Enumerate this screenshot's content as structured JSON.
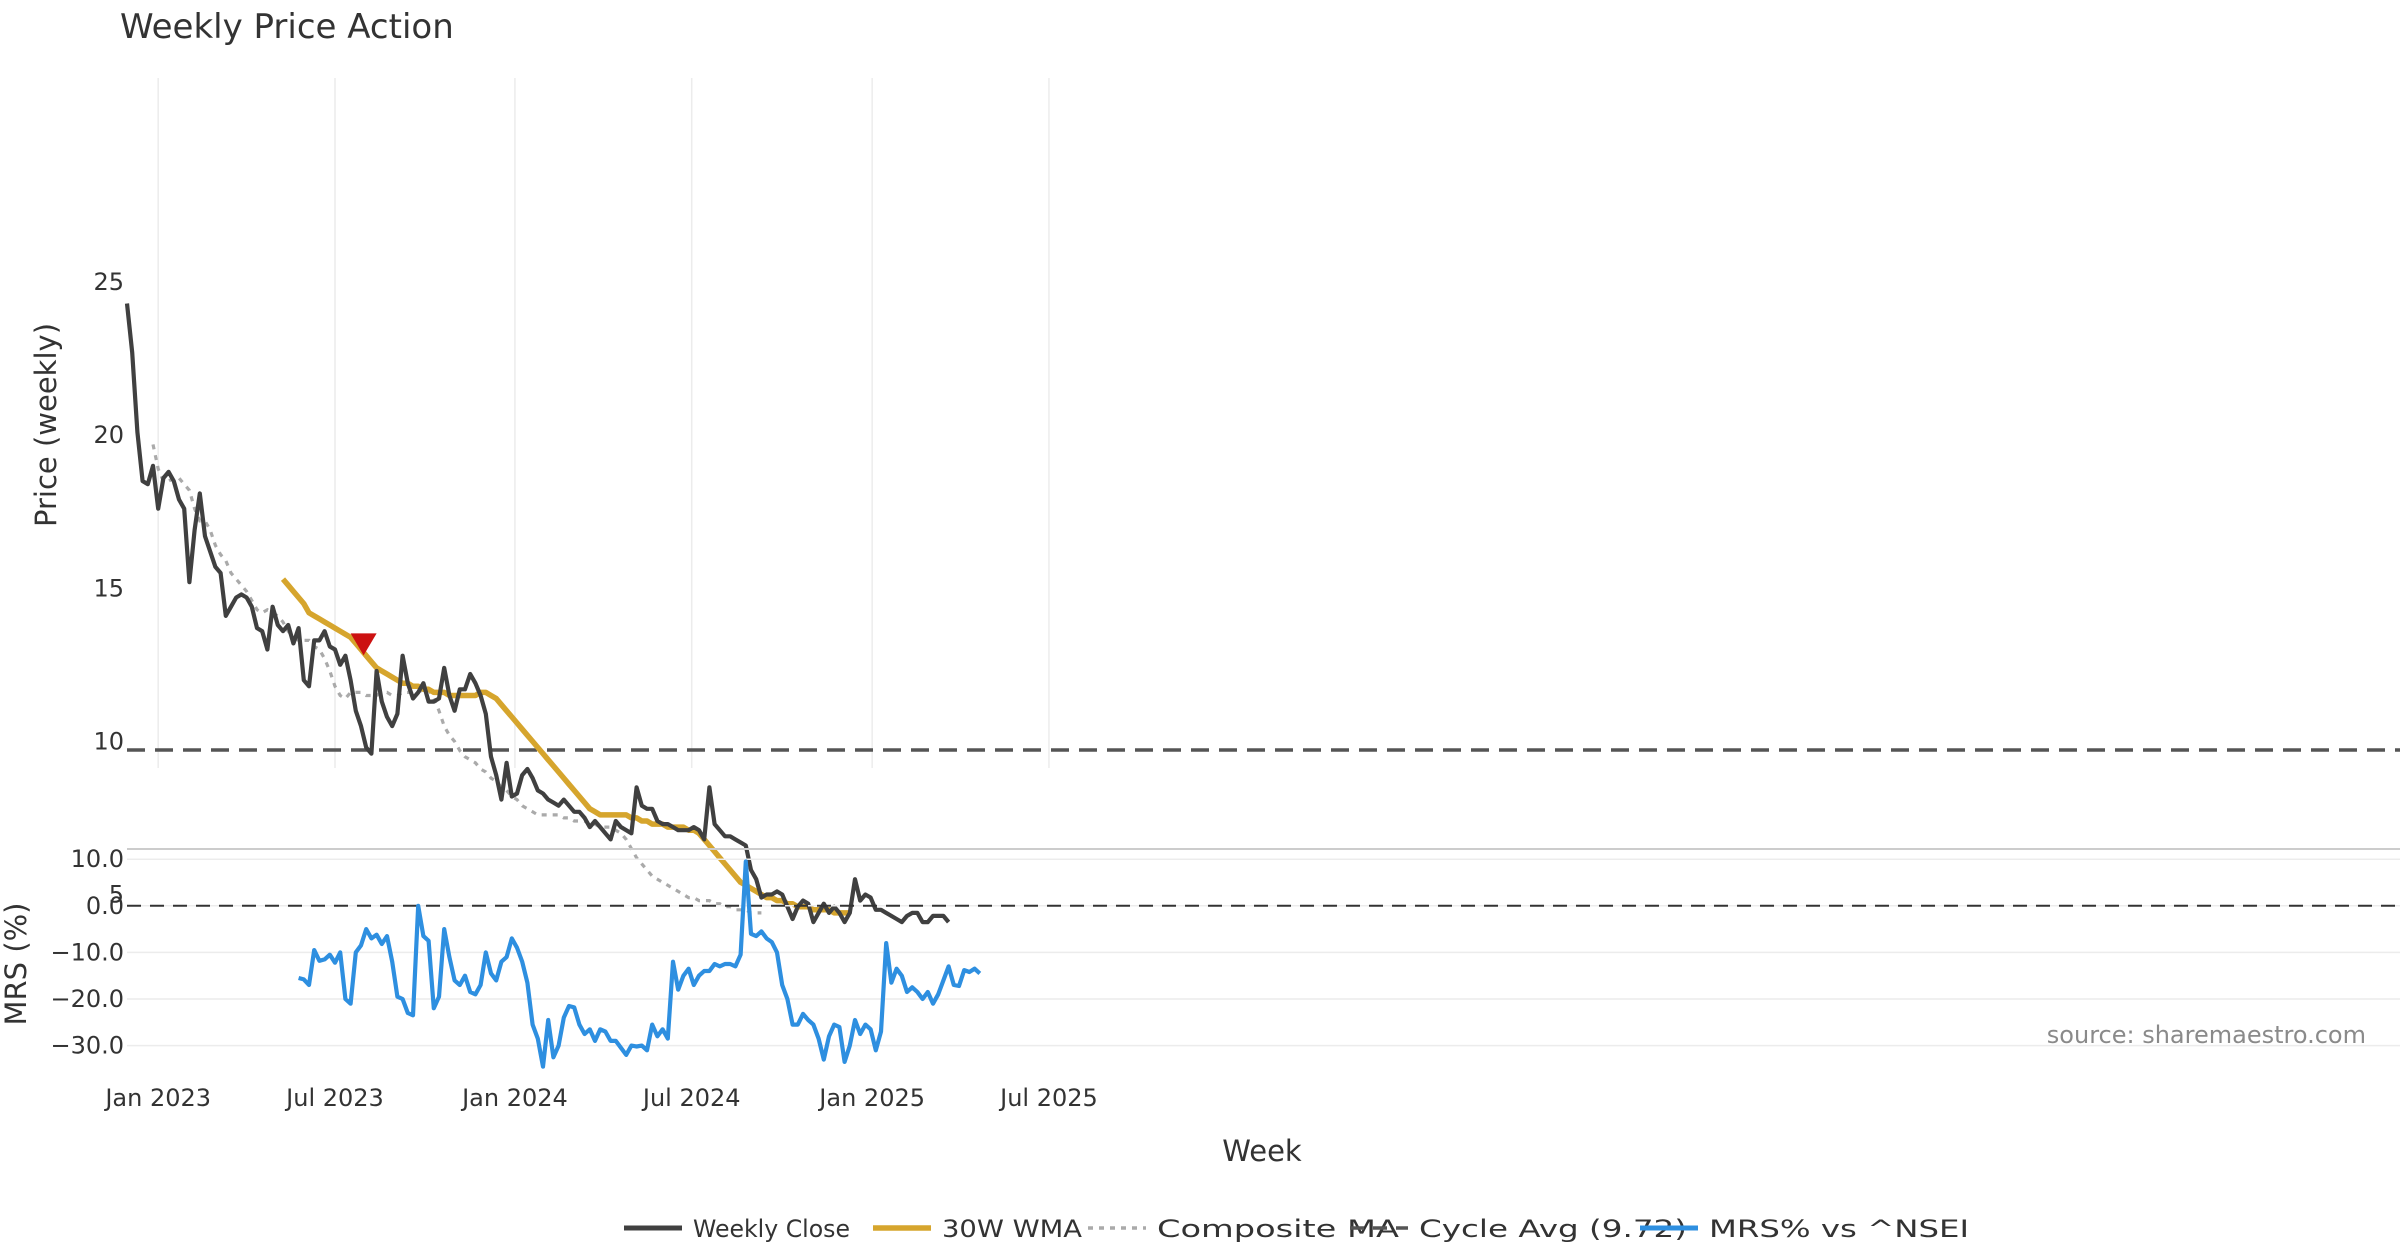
{
  "chart_data": {
    "type": "line",
    "title": "Weekly Price Action",
    "source": "source: sharemaestro.com",
    "xlabel": "Week",
    "x_ticks": [
      "Jan 2023",
      "Jul 2023",
      "Jan 2024",
      "Jul 2024",
      "Jan 2025",
      "Jul 2025"
    ],
    "x_tick_weeks": [
      6,
      40,
      74.6,
      108.6,
      143.3,
      177.3
    ],
    "legend": [
      "Weekly Close",
      "30W WMA",
      "Composite MA",
      "Cycle Avg (9.72)",
      "MRS% vs ^NSEI"
    ],
    "colors": {
      "close": "#404040",
      "wma": "#d6a52d",
      "composite": "#aaaaaa",
      "cycle": "#555555",
      "mrs": "#2e8fe0",
      "marker": "#cc1111"
    },
    "price_panel": {
      "ylabel": "Price (weekly)",
      "ylim": [
        2,
        25.5
      ],
      "y_ticks": [
        5,
        10,
        15,
        20,
        25
      ],
      "cycle_avg": 9.72,
      "sell_marker": {
        "week": 45.5,
        "price": 13.2
      },
      "series": [
        {
          "name": "Weekly Close",
          "start_week": 0,
          "values": [
            24.3,
            22.7,
            20.1,
            18.5,
            18.4,
            19.0,
            17.6,
            18.6,
            18.8,
            18.5,
            17.9,
            17.6,
            15.2,
            16.9,
            18.1,
            16.7,
            16.2,
            15.7,
            15.5,
            14.1,
            14.4,
            14.7,
            14.8,
            14.7,
            14.4,
            13.7,
            13.6,
            13.0,
            14.4,
            13.8,
            13.6,
            13.8,
            13.2,
            13.7,
            12.0,
            11.8,
            13.3,
            13.3,
            13.6,
            13.1,
            13.0,
            12.5,
            12.8,
            12.0,
            11.0,
            10.5,
            9.8,
            9.6,
            12.3,
            11.3,
            10.8,
            10.5,
            10.9,
            12.8,
            11.9,
            11.4,
            11.6,
            11.9,
            11.3,
            11.3,
            11.4,
            12.4,
            11.5,
            11.0,
            11.7,
            11.7,
            12.2,
            11.9,
            11.5,
            10.9,
            9.5,
            8.9,
            8.1,
            9.3,
            8.2,
            8.3,
            8.9,
            9.1,
            8.8,
            8.4,
            8.3,
            8.1,
            8.0,
            7.9,
            8.1,
            7.9,
            7.7,
            7.7,
            7.5,
            7.2,
            7.4,
            7.2,
            7.0,
            6.8,
            7.4,
            7.2,
            7.1,
            7.0,
            8.5,
            7.9,
            7.8,
            7.8,
            7.4,
            7.3,
            7.3,
            7.2,
            7.1,
            7.1,
            7.1,
            7.2,
            7.1,
            6.8,
            8.5,
            7.3,
            7.1,
            6.9,
            6.9,
            6.8,
            6.7,
            6.6,
            5.8,
            5.5,
            4.9,
            5.0,
            5.0,
            5.1,
            5.0,
            4.6,
            4.2,
            4.6,
            4.8,
            4.7,
            4.1,
            4.4,
            4.7,
            4.4,
            4.6,
            4.4,
            4.1,
            4.4,
            5.5,
            4.8,
            5.0,
            4.9,
            4.5,
            4.5,
            4.4,
            4.3,
            4.2,
            4.1,
            4.3,
            4.4,
            4.4,
            4.1,
            4.1,
            4.3,
            4.3,
            4.3,
            4.1
          ]
        },
        {
          "name": "30W WMA",
          "start_week": 30,
          "values": [
            15.3,
            15.1,
            14.9,
            14.7,
            14.5,
            14.2,
            14.1,
            14.0,
            13.9,
            13.8,
            13.7,
            13.6,
            13.5,
            13.4,
            13.2,
            13.0,
            12.8,
            12.6,
            12.4,
            12.3,
            12.2,
            12.1,
            12.0,
            11.9,
            11.9,
            11.8,
            11.8,
            11.7,
            11.7,
            11.6,
            11.6,
            11.6,
            11.5,
            11.5,
            11.5,
            11.5,
            11.5,
            11.5,
            11.6,
            11.6,
            11.5,
            11.4,
            11.2,
            11.0,
            10.8,
            10.6,
            10.4,
            10.2,
            10.0,
            9.8,
            9.6,
            9.4,
            9.2,
            9.0,
            8.8,
            8.6,
            8.4,
            8.2,
            8.0,
            7.8,
            7.7,
            7.6,
            7.6,
            7.6,
            7.6,
            7.6,
            7.6,
            7.5,
            7.5,
            7.4,
            7.4,
            7.3,
            7.3,
            7.3,
            7.2,
            7.2,
            7.2,
            7.2,
            7.1,
            7.1,
            7.0,
            6.8,
            6.6,
            6.4,
            6.2,
            6.0,
            5.8,
            5.6,
            5.4,
            5.3,
            5.2,
            5.1,
            5.0,
            4.9,
            4.9,
            4.8,
            4.8,
            4.7,
            4.7,
            4.6,
            4.6,
            4.6,
            4.5,
            4.5,
            4.5,
            4.5,
            4.4,
            4.4,
            4.4,
            4.4
          ]
        },
        {
          "name": "Composite MA",
          "start_week": 5,
          "values": [
            19.7,
            18.9,
            18.5,
            18.5,
            18.6,
            18.6,
            18.4,
            18.2,
            17.6,
            17.2,
            17.2,
            16.9,
            16.4,
            16.1,
            15.9,
            15.5,
            15.3,
            15.1,
            14.9,
            14.6,
            14.3,
            14.2,
            14.3,
            14.2,
            14.1,
            13.9,
            13.6,
            13.4,
            13.3,
            13.3,
            13.3,
            13.1,
            13.0,
            12.7,
            12.3,
            11.8,
            11.5,
            11.4,
            11.6,
            11.6,
            11.6,
            11.5,
            11.5,
            11.5,
            11.6,
            11.6,
            11.5,
            11.5,
            11.6,
            11.6,
            11.6,
            11.6,
            11.7,
            11.7,
            11.4,
            11.0,
            10.5,
            10.2,
            10.0,
            9.7,
            9.5,
            9.4,
            9.3,
            9.1,
            9.0,
            8.8,
            8.7,
            8.5,
            8.4,
            8.2,
            8.1,
            7.9,
            7.8,
            7.7,
            7.6,
            7.6,
            7.6,
            7.6,
            7.6,
            7.5,
            7.5,
            7.4,
            7.4,
            7.4,
            7.3,
            7.3,
            7.2,
            7.2,
            7.2,
            7.1,
            7.0,
            6.8,
            6.5,
            6.2,
            6.0,
            5.8,
            5.6,
            5.5,
            5.4,
            5.3,
            5.2,
            5.1,
            5.0,
            4.9,
            4.9,
            4.8,
            4.8,
            4.8,
            4.7,
            4.7,
            4.6,
            4.6,
            4.5,
            4.5,
            4.5,
            4.4,
            4.4,
            4.4
          ]
        }
      ]
    },
    "mrs_panel": {
      "ylabel": "MRS (%)",
      "ylim": [
        -36,
        12
      ],
      "y_ticks": [
        10.0,
        0.0,
        -10.0,
        -20.0,
        -30.0
      ],
      "y_tick_labels": [
        "10.0",
        "0.0",
        "−10.0",
        "−20.0",
        "−30.0"
      ],
      "reference": 0,
      "series": [
        {
          "name": "MRS% vs ^NSEI",
          "start_week": 33,
          "values": [
            -15.5,
            -15.8,
            -17.0,
            -9.5,
            -11.8,
            -11.5,
            -10.5,
            -12.2,
            -10.0,
            -20.0,
            -21.0,
            -10.0,
            -8.5,
            -5.0,
            -7.0,
            -6.2,
            -8.2,
            -6.5,
            -12.0,
            -19.5,
            -20.0,
            -23.0,
            -23.5,
            0.0,
            -6.5,
            -7.5,
            -22.0,
            -19.5,
            -5.0,
            -11.0,
            -16.0,
            -17.0,
            -15.0,
            -18.5,
            -19.0,
            -17.0,
            -10.0,
            -14.5,
            -16.0,
            -12.0,
            -11.0,
            -7.0,
            -9.0,
            -12.0,
            -16.5,
            -25.5,
            -28.5,
            -34.5,
            -24.5,
            -32.5,
            -30.0,
            -24.0,
            -21.5,
            -21.8,
            -25.5,
            -27.5,
            -26.5,
            -29.0,
            -26.5,
            -27.0,
            -29.0,
            -29.0,
            -30.5,
            -32.0,
            -30.0,
            -30.2,
            -30.0,
            -31.0,
            -25.5,
            -28.0,
            -26.5,
            -28.5,
            -12.0,
            -18.0,
            -15.0,
            -13.5,
            -17.0,
            -15.0,
            -14.0,
            -14.0,
            -12.5,
            -13.0,
            -12.5,
            -12.5,
            -13.0,
            -10.5,
            9.5,
            -6.0,
            -6.5,
            -5.5,
            -7.0,
            -7.8,
            -10.0,
            -17.0,
            -20.0,
            -25.5,
            -25.5,
            -23.2,
            -24.5,
            -25.5,
            -28.5,
            -33.0,
            -28.0,
            -25.5,
            -26.0,
            -33.5,
            -30.0,
            -24.5,
            -27.5,
            -25.5,
            -26.5,
            -31.0,
            -27.0,
            -8.0,
            -16.5,
            -13.5,
            -15.0,
            -18.5,
            -17.5,
            -18.5,
            -20.0,
            -18.5,
            -21.0,
            -19.0,
            -16.0,
            -13.0,
            -17.0,
            -17.2,
            -13.8,
            -14.2,
            -13.5,
            -14.5
          ]
        }
      ]
    }
  }
}
